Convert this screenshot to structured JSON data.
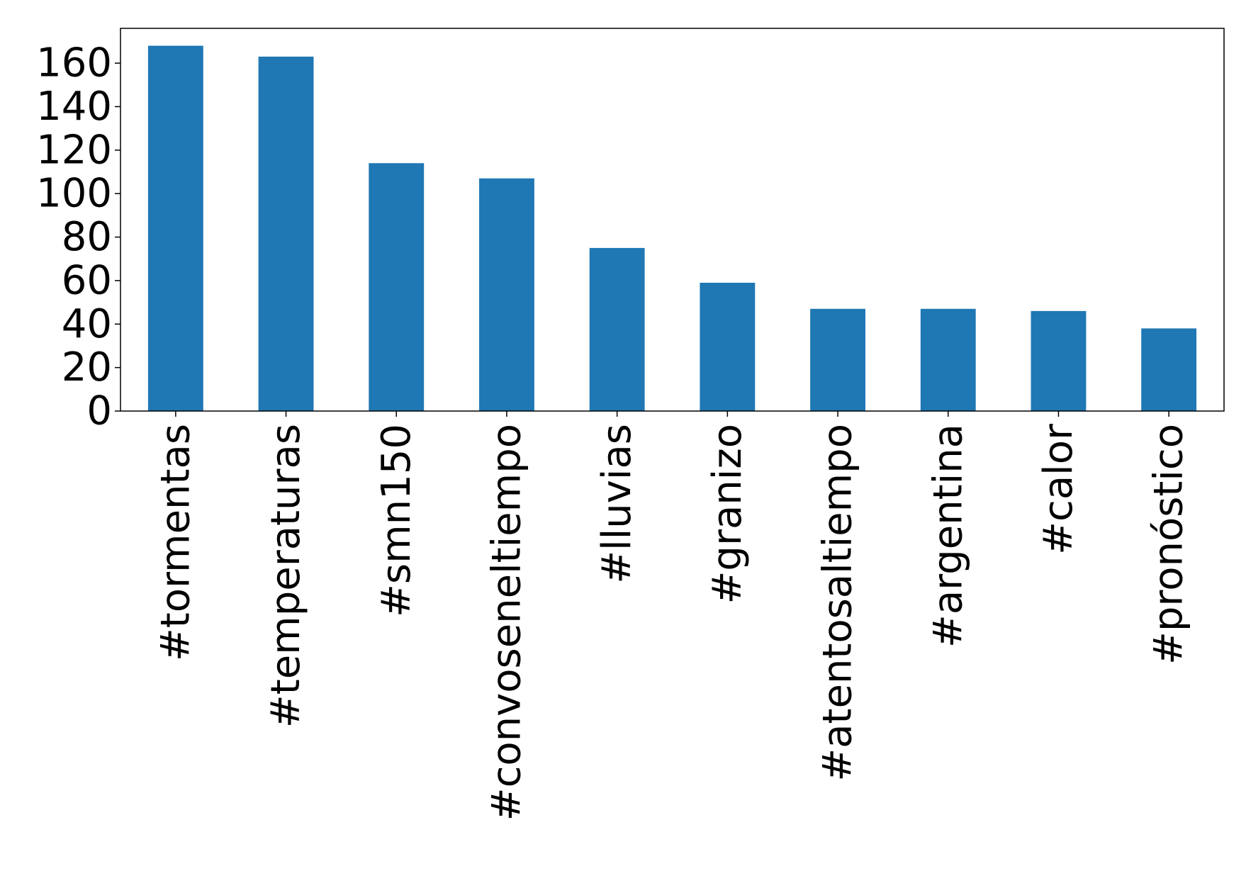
{
  "chart_data": {
    "type": "bar",
    "categories": [
      "#tormentas",
      "#temperaturas",
      "#smn150",
      "#convoseneltiempo",
      "#lluvias",
      "#granizo",
      "#atentosaltiempo",
      "#argentina",
      "#calor",
      "#pronóstico"
    ],
    "values": [
      168,
      163,
      114,
      107,
      75,
      59,
      47,
      47,
      46,
      38
    ],
    "title": "",
    "xlabel": "",
    "ylabel": "",
    "ylim": [
      0,
      176
    ],
    "yticks": [
      0,
      20,
      40,
      60,
      80,
      100,
      120,
      140,
      160
    ],
    "grid": false,
    "legend": "none",
    "bar_color": "#1f77b4"
  }
}
